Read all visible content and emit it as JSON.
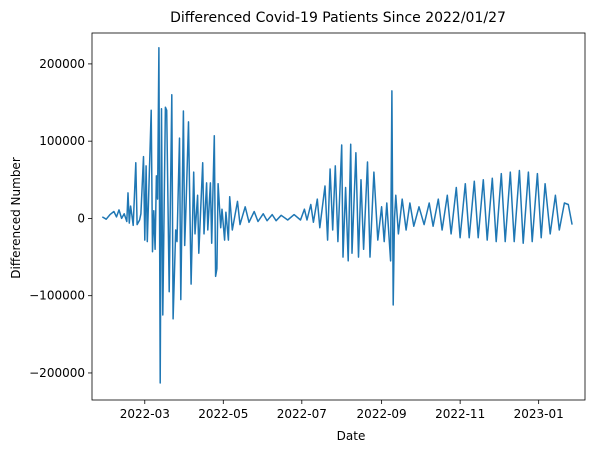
{
  "chart_data": {
    "type": "line",
    "title": "Differenced Covid-19 Patients Since 2022/01/27",
    "xlabel": "Date",
    "ylabel": "Differenced Number",
    "x_range": [
      "2022-01-19",
      "2023-02-06"
    ],
    "ylim": [
      -235000,
      240000
    ],
    "x_ticks": [
      {
        "date": "2022-03-01",
        "label": "2022-03"
      },
      {
        "date": "2022-05-01",
        "label": "2022-05"
      },
      {
        "date": "2022-07-01",
        "label": "2022-07"
      },
      {
        "date": "2022-09-01",
        "label": "2022-09"
      },
      {
        "date": "2022-11-01",
        "label": "2022-11"
      },
      {
        "date": "2023-01-01",
        "label": "2023-01"
      }
    ],
    "y_ticks": [
      {
        "value": -200000,
        "label": "−200000"
      },
      {
        "value": -100000,
        "label": "−100000"
      },
      {
        "value": 0,
        "label": "0"
      },
      {
        "value": 100000,
        "label": "100000"
      },
      {
        "value": 200000,
        "label": "200000"
      }
    ],
    "grid": false,
    "series": [
      {
        "color": "#1f77b4",
        "points": [
          [
            "2022-01-27",
            2000
          ],
          [
            "2022-01-30",
            -1000
          ],
          [
            "2022-02-02",
            5000
          ],
          [
            "2022-02-05",
            9000
          ],
          [
            "2022-02-07",
            2000
          ],
          [
            "2022-02-09",
            11000
          ],
          [
            "2022-02-11",
            0
          ],
          [
            "2022-02-13",
            6000
          ],
          [
            "2022-02-15",
            -4000
          ],
          [
            "2022-02-16",
            33000
          ],
          [
            "2022-02-17",
            -6000
          ],
          [
            "2022-02-18",
            16000
          ],
          [
            "2022-02-19",
            4000
          ],
          [
            "2022-02-20",
            -9000
          ],
          [
            "2022-02-22",
            72000
          ],
          [
            "2022-02-23",
            -8000
          ],
          [
            "2022-02-25",
            -2000
          ],
          [
            "2022-02-26",
            6000
          ],
          [
            "2022-02-28",
            80000
          ],
          [
            "2022-03-01",
            -28000
          ],
          [
            "2022-03-02",
            68000
          ],
          [
            "2022-03-03",
            -30000
          ],
          [
            "2022-03-06",
            140000
          ],
          [
            "2022-03-07",
            -43000
          ],
          [
            "2022-03-08",
            10000
          ],
          [
            "2022-03-09",
            -40000
          ],
          [
            "2022-03-10",
            55000
          ],
          [
            "2022-03-11",
            25000
          ],
          [
            "2022-03-12",
            221000
          ],
          [
            "2022-03-13",
            -213000
          ],
          [
            "2022-03-14",
            142000
          ],
          [
            "2022-03-15",
            -125000
          ],
          [
            "2022-03-17",
            144000
          ],
          [
            "2022-03-18",
            140000
          ],
          [
            "2022-03-20",
            -95000
          ],
          [
            "2022-03-22",
            160000
          ],
          [
            "2022-03-23",
            -130000
          ],
          [
            "2022-03-25",
            -15000
          ],
          [
            "2022-03-26",
            -30000
          ],
          [
            "2022-03-28",
            104000
          ],
          [
            "2022-03-29",
            -105000
          ],
          [
            "2022-03-31",
            139000
          ],
          [
            "2022-04-01",
            -35000
          ],
          [
            "2022-04-02",
            15000
          ],
          [
            "2022-04-04",
            125000
          ],
          [
            "2022-04-06",
            -85000
          ],
          [
            "2022-04-08",
            60000
          ],
          [
            "2022-04-09",
            -20000
          ],
          [
            "2022-04-11",
            30000
          ],
          [
            "2022-04-12",
            -45000
          ],
          [
            "2022-04-15",
            72000
          ],
          [
            "2022-04-16",
            -20000
          ],
          [
            "2022-04-18",
            46000
          ],
          [
            "2022-04-19",
            -15000
          ],
          [
            "2022-04-21",
            46000
          ],
          [
            "2022-04-22",
            -32000
          ],
          [
            "2022-04-24",
            107000
          ],
          [
            "2022-04-25",
            -75000
          ],
          [
            "2022-04-26",
            -65000
          ],
          [
            "2022-04-27",
            45000
          ],
          [
            "2022-04-29",
            -12000
          ],
          [
            "2022-04-30",
            12000
          ],
          [
            "2022-05-02",
            -28000
          ],
          [
            "2022-05-03",
            8000
          ],
          [
            "2022-05-05",
            -28000
          ],
          [
            "2022-05-06",
            28000
          ],
          [
            "2022-05-08",
            -15000
          ],
          [
            "2022-05-12",
            22000
          ],
          [
            "2022-05-14",
            -8000
          ],
          [
            "2022-05-18",
            15000
          ],
          [
            "2022-05-21",
            -5000
          ],
          [
            "2022-05-25",
            9000
          ],
          [
            "2022-05-28",
            -4000
          ],
          [
            "2022-06-01",
            6000
          ],
          [
            "2022-06-04",
            -3000
          ],
          [
            "2022-06-08",
            5000
          ],
          [
            "2022-06-11",
            -3000
          ],
          [
            "2022-06-15",
            4000
          ],
          [
            "2022-06-20",
            -2000
          ],
          [
            "2022-06-25",
            5000
          ],
          [
            "2022-06-30",
            -2000
          ],
          [
            "2022-07-03",
            12000
          ],
          [
            "2022-07-05",
            -2000
          ],
          [
            "2022-07-08",
            18000
          ],
          [
            "2022-07-10",
            -5000
          ],
          [
            "2022-07-13",
            25000
          ],
          [
            "2022-07-15",
            -12000
          ],
          [
            "2022-07-19",
            42000
          ],
          [
            "2022-07-21",
            -28000
          ],
          [
            "2022-07-23",
            64000
          ],
          [
            "2022-07-25",
            -15000
          ],
          [
            "2022-07-27",
            68000
          ],
          [
            "2022-07-29",
            -30000
          ],
          [
            "2022-08-01",
            95000
          ],
          [
            "2022-08-02",
            -50000
          ],
          [
            "2022-08-04",
            40000
          ],
          [
            "2022-08-06",
            -55000
          ],
          [
            "2022-08-08",
            96000
          ],
          [
            "2022-08-09",
            -45000
          ],
          [
            "2022-08-12",
            85000
          ],
          [
            "2022-08-14",
            -50000
          ],
          [
            "2022-08-16",
            50000
          ],
          [
            "2022-08-18",
            -40000
          ],
          [
            "2022-08-21",
            73000
          ],
          [
            "2022-08-23",
            -50000
          ],
          [
            "2022-08-26",
            60000
          ],
          [
            "2022-08-29",
            -28000
          ],
          [
            "2022-09-01",
            15000
          ],
          [
            "2022-09-03",
            -30000
          ],
          [
            "2022-09-05",
            20000
          ],
          [
            "2022-09-08",
            -55000
          ],
          [
            "2022-09-09",
            165000
          ],
          [
            "2022-09-10",
            -112000
          ],
          [
            "2022-09-11",
            0
          ],
          [
            "2022-09-12",
            30000
          ],
          [
            "2022-09-14",
            -20000
          ],
          [
            "2022-09-17",
            25000
          ],
          [
            "2022-09-20",
            -15000
          ],
          [
            "2022-09-23",
            20000
          ],
          [
            "2022-09-26",
            -10000
          ],
          [
            "2022-09-30",
            15000
          ],
          [
            "2022-10-04",
            -8000
          ],
          [
            "2022-10-08",
            20000
          ],
          [
            "2022-10-11",
            -10000
          ],
          [
            "2022-10-15",
            25000
          ],
          [
            "2022-10-18",
            -15000
          ],
          [
            "2022-10-22",
            30000
          ],
          [
            "2022-10-25",
            -20000
          ],
          [
            "2022-10-29",
            40000
          ],
          [
            "2022-11-01",
            -25000
          ],
          [
            "2022-11-05",
            45000
          ],
          [
            "2022-11-08",
            -25000
          ],
          [
            "2022-11-12",
            48000
          ],
          [
            "2022-11-15",
            -25000
          ],
          [
            "2022-11-19",
            50000
          ],
          [
            "2022-11-22",
            -28000
          ],
          [
            "2022-11-26",
            52000
          ],
          [
            "2022-11-29",
            -30000
          ],
          [
            "2022-12-03",
            58000
          ],
          [
            "2022-12-06",
            -30000
          ],
          [
            "2022-12-10",
            60000
          ],
          [
            "2022-12-13",
            -30000
          ],
          [
            "2022-12-17",
            62000
          ],
          [
            "2022-12-20",
            -32000
          ],
          [
            "2022-12-24",
            60000
          ],
          [
            "2022-12-27",
            -30000
          ],
          [
            "2022-12-31",
            58000
          ],
          [
            "2023-01-03",
            -25000
          ],
          [
            "2023-01-06",
            45000
          ],
          [
            "2023-01-10",
            -20000
          ],
          [
            "2023-01-14",
            30000
          ],
          [
            "2023-01-17",
            -15000
          ],
          [
            "2023-01-21",
            20000
          ],
          [
            "2023-01-24",
            18000
          ],
          [
            "2023-01-27",
            -8000
          ]
        ]
      }
    ]
  }
}
